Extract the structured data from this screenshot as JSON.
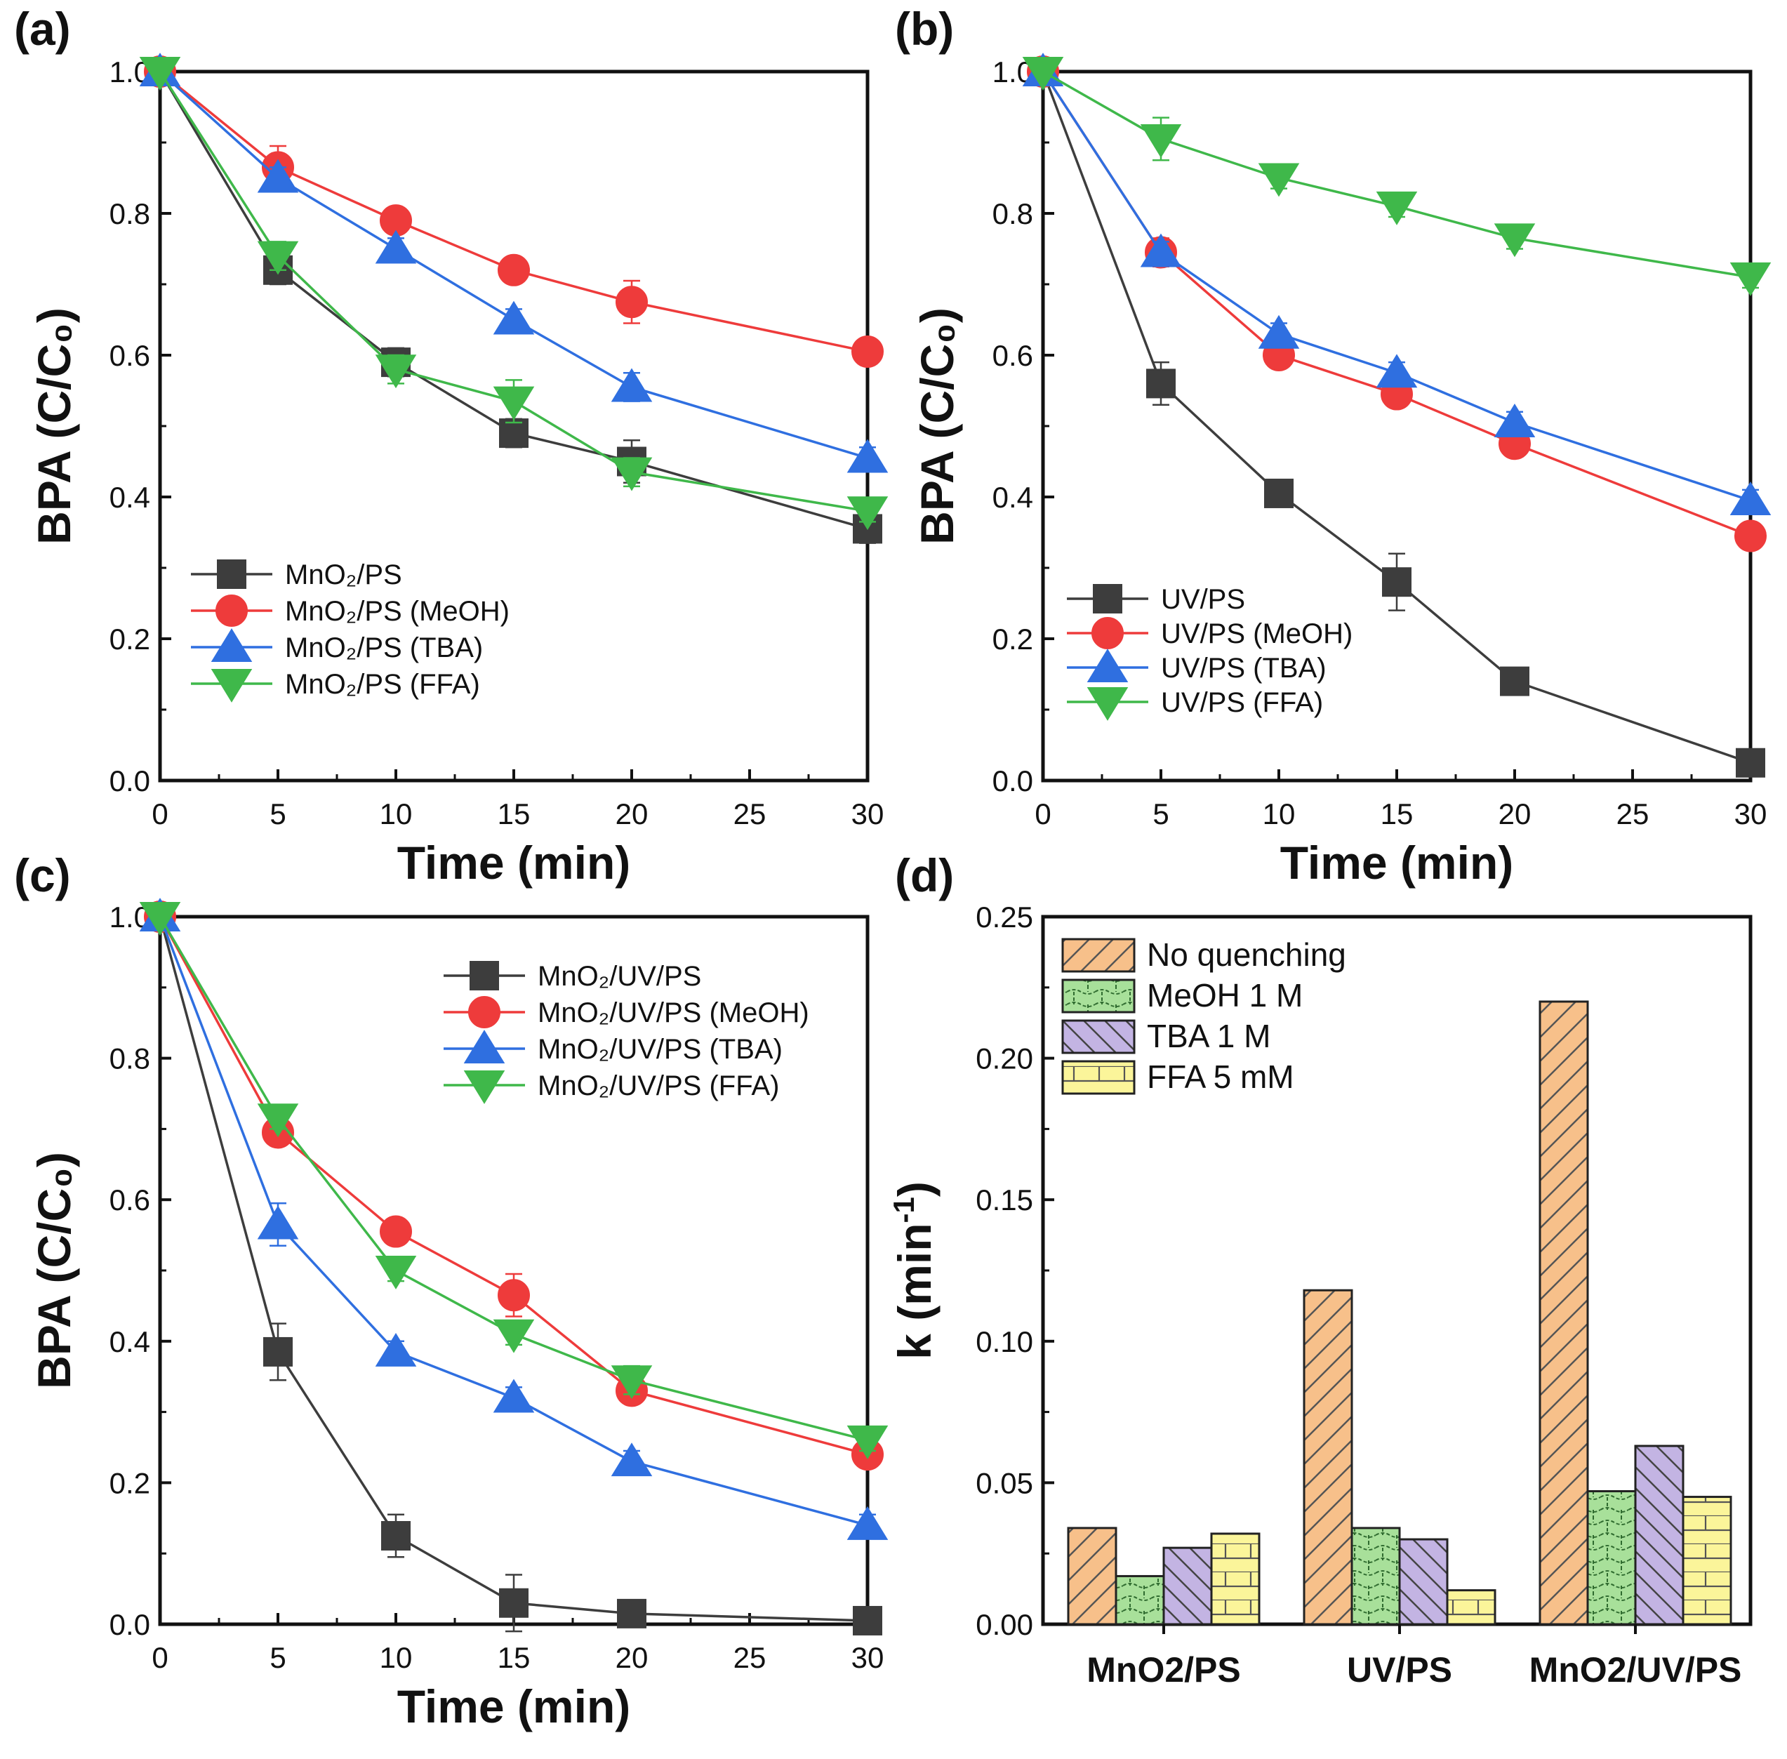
{
  "chart_data": [
    {
      "panel": "(a)",
      "type": "line",
      "x": [
        0,
        5,
        10,
        15,
        20,
        30
      ],
      "xticks": [
        "0",
        "5",
        "10",
        "15",
        "20",
        "25",
        "30"
      ],
      "xlim": [
        0,
        30
      ],
      "yticks": [
        "0.0",
        "0.2",
        "0.4",
        "0.6",
        "0.8",
        "1.0"
      ],
      "ylim": [
        0,
        1.0
      ],
      "xlabel": "Time (min)",
      "ylabel": "BPA (C/C₀)",
      "legend_position": "bottom-left",
      "series": [
        {
          "name": "MnO₂/PS",
          "marker": "square",
          "color": "#3d3d3d",
          "values": [
            1.0,
            0.72,
            0.59,
            0.49,
            0.45,
            0.355
          ],
          "errors": [
            0,
            0.02,
            0.02,
            0.02,
            0.03,
            0.02
          ]
        },
        {
          "name": "MnO₂/PS (MeOH)",
          "marker": "circle",
          "color": "#ee3b3b",
          "values": [
            1.0,
            0.865,
            0.79,
            0.72,
            0.675,
            0.605
          ],
          "errors": [
            0,
            0.03,
            0.015,
            0.015,
            0.03,
            0.015
          ]
        },
        {
          "name": "MnO₂/PS (TBA)",
          "marker": "triangle-up",
          "color": "#2f6fe0",
          "values": [
            1.0,
            0.85,
            0.75,
            0.65,
            0.555,
            0.455
          ],
          "errors": [
            0,
            0.015,
            0.015,
            0.015,
            0.02,
            0.015
          ]
        },
        {
          "name": "MnO₂/PS (FFA)",
          "marker": "triangle-down",
          "color": "#3fb84a",
          "values": [
            1.0,
            0.74,
            0.58,
            0.535,
            0.435,
            0.38
          ],
          "errors": [
            0,
            0.02,
            0.02,
            0.03,
            0.02,
            0.015
          ]
        }
      ]
    },
    {
      "panel": "(b)",
      "type": "line",
      "x": [
        0,
        5,
        10,
        15,
        20,
        30
      ],
      "xticks": [
        "0",
        "5",
        "10",
        "15",
        "20",
        "25",
        "30"
      ],
      "xlim": [
        0,
        30
      ],
      "yticks": [
        "0.0",
        "0.2",
        "0.4",
        "0.6",
        "0.8",
        "1.0"
      ],
      "ylim": [
        0,
        1.0
      ],
      "xlabel": "Time (min)",
      "ylabel": "BPA (C/C₀)",
      "legend_position": "bottom-left",
      "series": [
        {
          "name": "UV/PS",
          "marker": "square",
          "color": "#3d3d3d",
          "values": [
            1.0,
            0.56,
            0.405,
            0.28,
            0.14,
            0.025
          ],
          "errors": [
            0,
            0.03,
            0.015,
            0.04,
            0.015,
            0.01
          ]
        },
        {
          "name": "UV/PS (MeOH)",
          "marker": "circle",
          "color": "#ee3b3b",
          "values": [
            1.0,
            0.745,
            0.6,
            0.545,
            0.475,
            0.345
          ],
          "errors": [
            0,
            0.02,
            0.015,
            0.015,
            0.015,
            0.015
          ]
        },
        {
          "name": "UV/PS (TBA)",
          "marker": "triangle-up",
          "color": "#2f6fe0",
          "values": [
            1.0,
            0.745,
            0.63,
            0.575,
            0.505,
            0.395
          ],
          "errors": [
            0,
            0.015,
            0.015,
            0.015,
            0.015,
            0.015
          ]
        },
        {
          "name": "UV/PS (FFA)",
          "marker": "triangle-down",
          "color": "#3fb84a",
          "values": [
            1.0,
            0.905,
            0.85,
            0.81,
            0.765,
            0.71
          ],
          "errors": [
            0,
            0.03,
            0.015,
            0.015,
            0.015,
            0.015
          ]
        }
      ]
    },
    {
      "panel": "(c)",
      "type": "line",
      "x": [
        0,
        5,
        10,
        15,
        20,
        30
      ],
      "xticks": [
        "0",
        "5",
        "10",
        "15",
        "20",
        "25",
        "30"
      ],
      "xlim": [
        0,
        30
      ],
      "yticks": [
        "0.0",
        "0.2",
        "0.4",
        "0.6",
        "0.8",
        "1.0"
      ],
      "ylim": [
        0,
        1.0
      ],
      "xlabel": "Time (min)",
      "ylabel": "BPA (C/C₀)",
      "legend_position": "top-right",
      "series": [
        {
          "name": "MnO₂/UV/PS",
          "marker": "square",
          "color": "#3d3d3d",
          "values": [
            1.0,
            0.385,
            0.125,
            0.03,
            0.015,
            0.005
          ],
          "errors": [
            0,
            0.04,
            0.03,
            0.04,
            0.01,
            0.005
          ]
        },
        {
          "name": "MnO₂/UV/PS (MeOH)",
          "marker": "circle",
          "color": "#ee3b3b",
          "values": [
            1.0,
            0.695,
            0.555,
            0.465,
            0.33,
            0.24
          ],
          "errors": [
            0,
            0.015,
            0.015,
            0.03,
            0.015,
            0.015
          ]
        },
        {
          "name": "MnO₂/UV/PS (TBA)",
          "marker": "triangle-up",
          "color": "#2f6fe0",
          "values": [
            1.0,
            0.565,
            0.385,
            0.32,
            0.23,
            0.14
          ],
          "errors": [
            0,
            0.03,
            0.015,
            0.015,
            0.015,
            0.015
          ]
        },
        {
          "name": "MnO₂/UV/PS (FFA)",
          "marker": "triangle-down",
          "color": "#3fb84a",
          "values": [
            1.0,
            0.715,
            0.5,
            0.41,
            0.345,
            0.26
          ],
          "errors": [
            0,
            0.015,
            0.015,
            0.015,
            0.02,
            0.015
          ]
        }
      ]
    },
    {
      "panel": "(d)",
      "type": "bar",
      "categories": [
        "MnO2/PS",
        "UV/PS",
        "MnO2/UV/PS"
      ],
      "yticks": [
        "0.00",
        "0.05",
        "0.10",
        "0.15",
        "0.20",
        "0.25"
      ],
      "ylim": [
        0,
        0.25
      ],
      "xlabel": "",
      "ylabel": "k (min",
      "ylabel_sup": "-1",
      "ylabel_end": ")",
      "legend_position": "top-left",
      "series": [
        {
          "name": "No quenching",
          "color": "#f7c08a",
          "pattern": "diagonal",
          "values": [
            0.034,
            0.118,
            0.22
          ]
        },
        {
          "name": "MeOH 1 M",
          "color": "#a8e09a",
          "pattern": "bricks",
          "values": [
            0.017,
            0.034,
            0.047
          ]
        },
        {
          "name": "TBA 1 M",
          "color": "#c3b4e3",
          "pattern": "back-diagonal",
          "values": [
            0.027,
            0.03,
            0.063
          ]
        },
        {
          "name": "FFA 5 mM",
          "color": "#fbf59a",
          "pattern": "grid",
          "values": [
            0.032,
            0.012,
            0.045
          ]
        }
      ]
    }
  ]
}
